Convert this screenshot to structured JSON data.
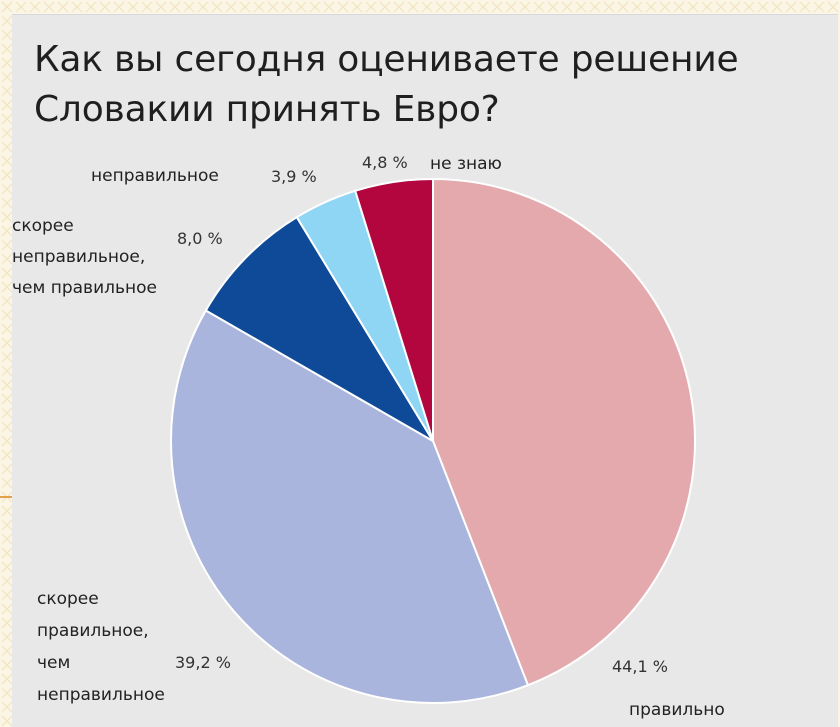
{
  "slide": {
    "title_line1": "Как вы сегодня оцениваете решение",
    "title_line2": "Словакии принять Евро?"
  },
  "chart_data": {
    "type": "pie",
    "title": "Как вы сегодня оцениваете решение Словакии принять Евро?",
    "start": "12 o'clock",
    "direction": "clockwise",
    "slices": [
      {
        "category": "правильно",
        "label_lines": [
          "правильно"
        ],
        "value": 44.1,
        "value_label": "44,1 %",
        "color": "#e3a9ad"
      },
      {
        "category": "скорее правильное, чем неправильное",
        "label_lines": [
          "скорее",
          "правильное,",
          "чем",
          "неправильное"
        ],
        "value": 39.2,
        "value_label": "39,2 %",
        "color": "#a9b5dc"
      },
      {
        "category": "скорее неправильное, чем правильное",
        "label_lines": [
          "скорее",
          "неправильное,",
          "чем правильное"
        ],
        "value": 8.0,
        "value_label": "8,0 %",
        "color": "#0e4a97"
      },
      {
        "category": "неправильное",
        "label_lines": [
          "неправильное"
        ],
        "value": 3.9,
        "value_label": "3,9 %",
        "color": "#8fd6f5"
      },
      {
        "category": "не знаю",
        "label_lines": [
          "не знаю"
        ],
        "value": 4.8,
        "value_label": "4,8 %",
        "color": "#b3063f"
      }
    ]
  }
}
